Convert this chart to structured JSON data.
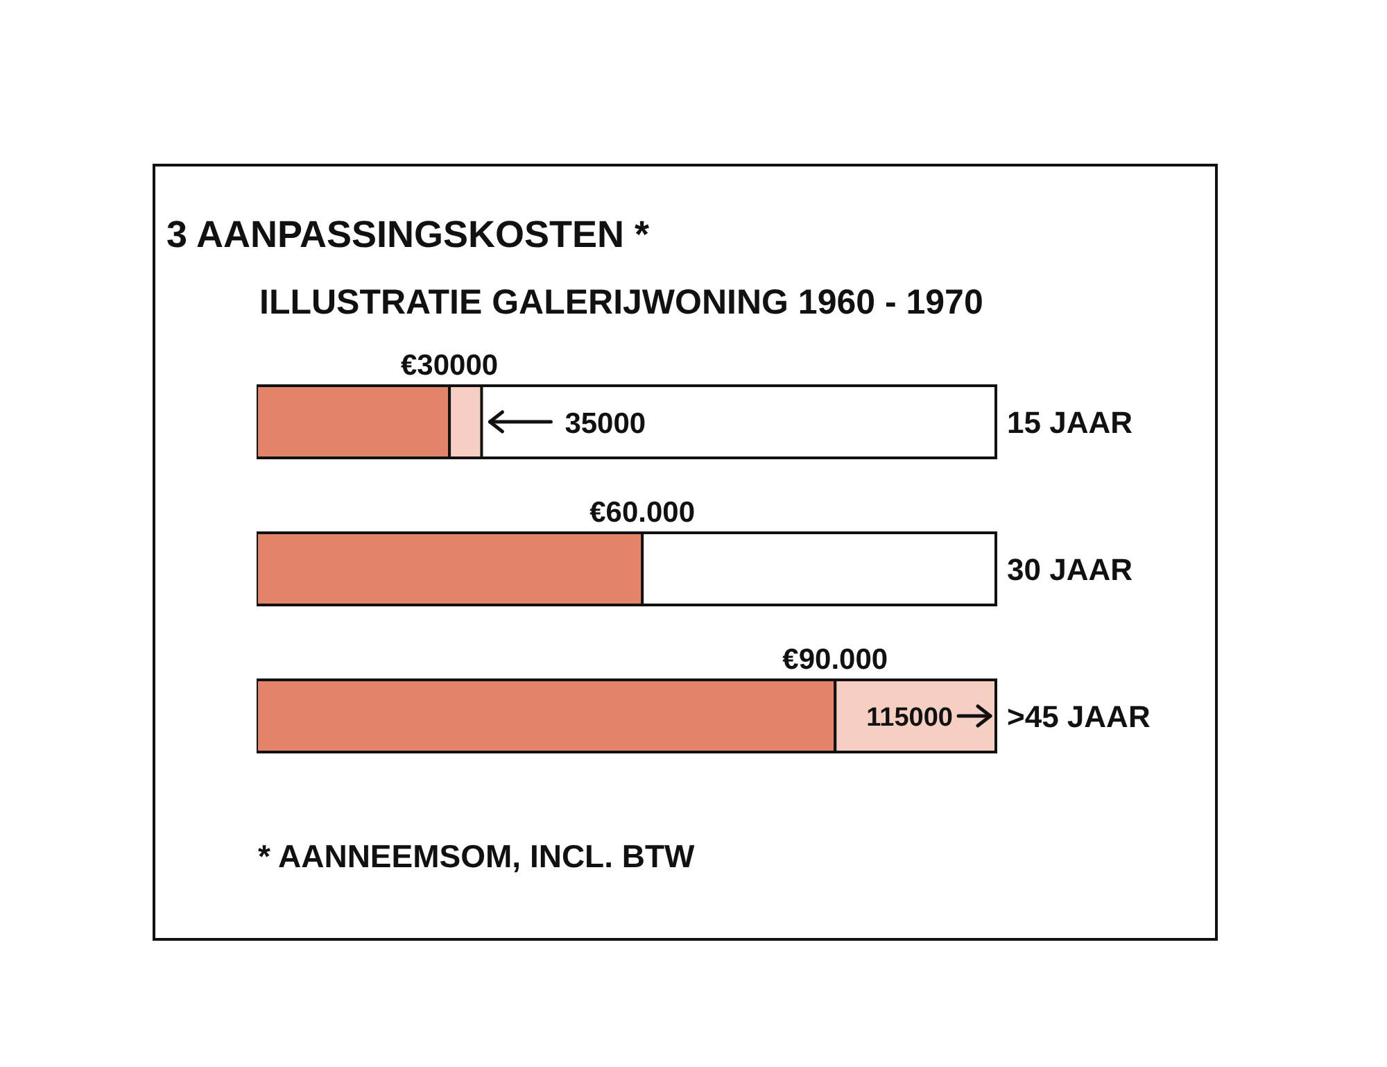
{
  "chart_data": {
    "type": "bar",
    "orientation": "horizontal",
    "stacked": true,
    "title": "3 AANPASSINGSKOSTEN *",
    "subtitle": "ILLUSTRATIE GALERIJWONING 1960 - 1970",
    "categories": [
      "15 JAAR",
      "30 JAAR",
      ">45 JAAR"
    ],
    "series": [
      {
        "color": "#e2836a",
        "values": [
          30000,
          60000,
          90000
        ],
        "value_labels": [
          "€30000",
          "€60.000",
          "€90.000"
        ]
      },
      {
        "color": "#f6cfc3",
        "values": [
          5000,
          null,
          25000
        ]
      }
    ],
    "totals": [
      "35000",
      null,
      "115000"
    ],
    "xlim": [
      0,
      115000
    ],
    "tick_labels": "y",
    "annotations": [
      "* AANNEEMSOM, INCL. BTW"
    ]
  }
}
